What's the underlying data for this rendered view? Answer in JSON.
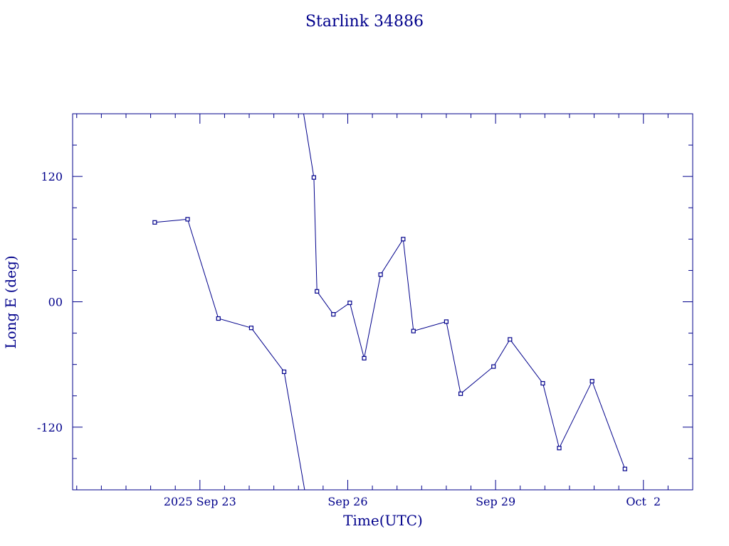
{
  "chart_data": {
    "type": "line",
    "title": "Starlink 34886",
    "xlabel": "Time(UTC)",
    "ylabel": "Long E (deg)",
    "color": "#00008b",
    "xlim": [
      "2025-09-20T10:00",
      "2025-10-03T00:00"
    ],
    "ylim": [
      -180,
      180
    ],
    "x_ticks": [
      {
        "t": "2025-09-23T00:00",
        "label": "2025 Sep 23"
      },
      {
        "t": "2025-09-26T00:00",
        "label": "Sep 26"
      },
      {
        "t": "2025-09-29T00:00",
        "label": "Sep 29"
      },
      {
        "t": "2025-10-02T00:00",
        "label": "Oct  2"
      }
    ],
    "y_ticks": [
      {
        "v": 120,
        "label": "120"
      },
      {
        "v": 0,
        "label": "00"
      },
      {
        "v": -120,
        "label": "-120"
      }
    ],
    "segments": [
      {
        "points": [
          {
            "t": "2025-09-22T02:00",
            "lon": 76
          },
          {
            "t": "2025-09-22T18:00",
            "lon": 79
          },
          {
            "t": "2025-09-23T09:00",
            "lon": -16
          },
          {
            "t": "2025-09-24T01:00",
            "lon": -25
          },
          {
            "t": "2025-09-24T17:00",
            "lon": -67
          },
          {
            "t": "2025-09-25T03:00",
            "lon": -180
          }
        ],
        "marker_count": 5
      },
      {
        "points": [
          {
            "t": "2025-09-25T02:30",
            "lon": 180
          },
          {
            "t": "2025-09-25T07:30",
            "lon": 119
          },
          {
            "t": "2025-09-25T09:00",
            "lon": 10
          },
          {
            "t": "2025-09-25T17:00",
            "lon": -12
          },
          {
            "t": "2025-09-26T01:00",
            "lon": -1
          },
          {
            "t": "2025-09-26T08:00",
            "lon": -54
          },
          {
            "t": "2025-09-26T16:00",
            "lon": 26
          },
          {
            "t": "2025-09-27T03:00",
            "lon": 60
          },
          {
            "t": "2025-09-27T08:00",
            "lon": -28
          },
          {
            "t": "2025-09-28T00:00",
            "lon": -19
          },
          {
            "t": "2025-09-28T07:00",
            "lon": -88
          },
          {
            "t": "2025-09-28T23:00",
            "lon": -62
          },
          {
            "t": "2025-09-29T07:00",
            "lon": -36
          },
          {
            "t": "2025-09-29T23:00",
            "lon": -78
          },
          {
            "t": "2025-09-30T07:00",
            "lon": -140
          },
          {
            "t": "2025-09-30T23:00",
            "lon": -76
          },
          {
            "t": "2025-10-01T15:00",
            "lon": -160
          }
        ],
        "marker_from": 1
      }
    ]
  }
}
